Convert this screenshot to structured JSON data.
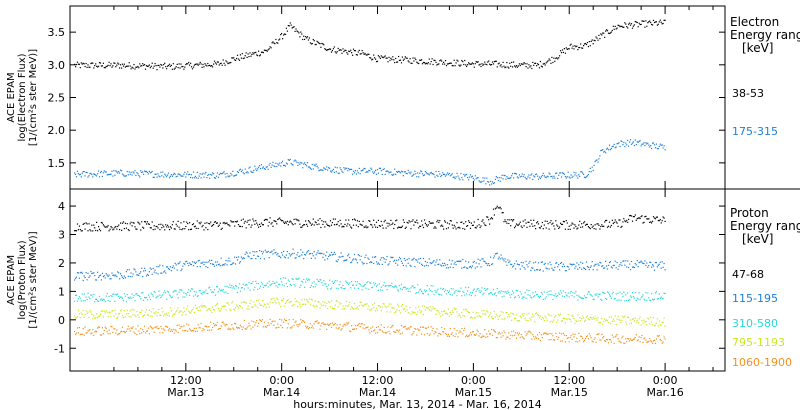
{
  "chart_data": {
    "type": "scatter",
    "xlabel": "hours:minutes, Mar. 13, 2014 - Mar. 16, 2014",
    "x_ticks": [
      {
        "line1": "12:00",
        "line2": "Mar.13",
        "hours": 12
      },
      {
        "line1": "0:00",
        "line2": "Mar.14",
        "hours": 24
      },
      {
        "line1": "12:00",
        "line2": "Mar.14",
        "hours": 36
      },
      {
        "line1": "0:00",
        "line2": "Mar.15",
        "hours": 48
      },
      {
        "line1": "12:00",
        "line2": "Mar.15",
        "hours": 60
      },
      {
        "line1": "0:00",
        "line2": "Mar.16",
        "hours": 72
      }
    ],
    "xlim_hours": [
      -2.5,
      79.5
    ],
    "panels": [
      {
        "ylabel_lines": [
          "ACE EPAM",
          "log(Electron Flux)",
          "[1/(cm²s ster MeV)]"
        ],
        "ylim": [
          1.1,
          3.9
        ],
        "y_ticks": [
          "1.5",
          "2.0",
          "2.5",
          "3.0",
          "3.5"
        ],
        "side_title": [
          "Electron",
          "Energy ranges",
          "[keV]"
        ],
        "series": [
          {
            "name": "38-53",
            "color": "#000000",
            "points": [
              [
                -2,
                3.0
              ],
              [
                4,
                3.0
              ],
              [
                10,
                2.98
              ],
              [
                16,
                3.02
              ],
              [
                18,
                3.1
              ],
              [
                22,
                3.22
              ],
              [
                24,
                3.45
              ],
              [
                25,
                3.6
              ],
              [
                27,
                3.4
              ],
              [
                30,
                3.25
              ],
              [
                34,
                3.18
              ],
              [
                36,
                3.1
              ],
              [
                40,
                3.08
              ],
              [
                44,
                3.05
              ],
              [
                48,
                3.02
              ],
              [
                50,
                3.02
              ],
              [
                54,
                3.0
              ],
              [
                56,
                3.0
              ],
              [
                58,
                3.1
              ],
              [
                60,
                3.28
              ],
              [
                62,
                3.3
              ],
              [
                64,
                3.45
              ],
              [
                66,
                3.6
              ],
              [
                68,
                3.62
              ],
              [
                70,
                3.64
              ],
              [
                72,
                3.65
              ]
            ]
          },
          {
            "name": "175-315",
            "color": "#1e7fd8",
            "points": [
              [
                -2,
                1.33
              ],
              [
                4,
                1.35
              ],
              [
                10,
                1.33
              ],
              [
                16,
                1.32
              ],
              [
                19,
                1.38
              ],
              [
                22,
                1.45
              ],
              [
                25,
                1.52
              ],
              [
                28,
                1.45
              ],
              [
                32,
                1.38
              ],
              [
                36,
                1.38
              ],
              [
                40,
                1.35
              ],
              [
                44,
                1.33
              ],
              [
                48,
                1.28
              ],
              [
                50,
                1.22
              ],
              [
                52,
                1.3
              ],
              [
                56,
                1.3
              ],
              [
                60,
                1.32
              ],
              [
                62,
                1.33
              ],
              [
                63,
                1.45
              ],
              [
                64,
                1.68
              ],
              [
                66,
                1.8
              ],
              [
                68,
                1.82
              ],
              [
                70,
                1.78
              ],
              [
                72,
                1.74
              ]
            ]
          }
        ]
      },
      {
        "ylabel_lines": [
          "ACE EPAM",
          "log(Proton Flux)",
          "[1/(cm²s ster MeV)]"
        ],
        "ylim": [
          -1.8,
          4.6
        ],
        "y_ticks": [
          "-1",
          "0",
          "1",
          "2",
          "3",
          "4"
        ],
        "side_title": [
          "Proton",
          "Energy ranges",
          "[keV]"
        ],
        "series": [
          {
            "name": "47-68",
            "color": "#000000",
            "points": [
              [
                -2,
                3.3
              ],
              [
                10,
                3.32
              ],
              [
                16,
                3.35
              ],
              [
                18,
                3.38
              ],
              [
                22,
                3.45
              ],
              [
                30,
                3.42
              ],
              [
                40,
                3.38
              ],
              [
                48,
                3.35
              ],
              [
                50,
                3.55
              ],
              [
                51,
                4.1
              ],
              [
                52,
                3.4
              ],
              [
                60,
                3.35
              ],
              [
                66,
                3.38
              ],
              [
                68,
                3.6
              ],
              [
                70,
                3.55
              ],
              [
                72,
                3.5
              ]
            ]
          },
          {
            "name": "115-195",
            "color": "#1e7fd8",
            "points": [
              [
                -2,
                1.55
              ],
              [
                4,
                1.6
              ],
              [
                8,
                1.75
              ],
              [
                12,
                1.95
              ],
              [
                16,
                2.05
              ],
              [
                18,
                2.1
              ],
              [
                20,
                2.3
              ],
              [
                26,
                2.35
              ],
              [
                30,
                2.25
              ],
              [
                34,
                2.15
              ],
              [
                36,
                2.1
              ],
              [
                40,
                2.05
              ],
              [
                44,
                2.0
              ],
              [
                48,
                1.98
              ],
              [
                50,
                2.05
              ],
              [
                51,
                2.3
              ],
              [
                52,
                1.98
              ],
              [
                56,
                1.9
              ],
              [
                60,
                1.88
              ],
              [
                64,
                1.92
              ],
              [
                68,
                1.95
              ],
              [
                72,
                1.9
              ]
            ]
          },
          {
            "name": "310-580",
            "color": "#29d8d8",
            "points": [
              [
                -2,
                0.8
              ],
              [
                4,
                0.8
              ],
              [
                10,
                0.9
              ],
              [
                16,
                1.05
              ],
              [
                20,
                1.2
              ],
              [
                24,
                1.35
              ],
              [
                28,
                1.3
              ],
              [
                32,
                1.22
              ],
              [
                36,
                1.2
              ],
              [
                40,
                1.12
              ],
              [
                44,
                1.05
              ],
              [
                48,
                1.0
              ],
              [
                52,
                0.95
              ],
              [
                56,
                0.9
              ],
              [
                60,
                0.88
              ],
              [
                66,
                0.85
              ],
              [
                72,
                0.85
              ]
            ]
          },
          {
            "name": "795-1193",
            "color": "#c8e81e",
            "points": [
              [
                -2,
                0.2
              ],
              [
                4,
                0.22
              ],
              [
                10,
                0.3
              ],
              [
                16,
                0.45
              ],
              [
                20,
                0.55
              ],
              [
                24,
                0.65
              ],
              [
                28,
                0.6
              ],
              [
                32,
                0.52
              ],
              [
                36,
                0.45
              ],
              [
                40,
                0.38
              ],
              [
                44,
                0.3
              ],
              [
                48,
                0.22
              ],
              [
                52,
                0.15
              ],
              [
                56,
                0.1
              ],
              [
                60,
                0.05
              ],
              [
                66,
                0.0
              ],
              [
                72,
                -0.05
              ]
            ]
          },
          {
            "name": "1060-1900",
            "color": "#f0911e",
            "points": [
              [
                -2,
                -0.4
              ],
              [
                4,
                -0.35
              ],
              [
                10,
                -0.3
              ],
              [
                16,
                -0.2
              ],
              [
                20,
                -0.15
              ],
              [
                24,
                -0.1
              ],
              [
                28,
                -0.15
              ],
              [
                32,
                -0.22
              ],
              [
                36,
                -0.3
              ],
              [
                40,
                -0.35
              ],
              [
                44,
                -0.4
              ],
              [
                48,
                -0.45
              ],
              [
                52,
                -0.5
              ],
              [
                56,
                -0.55
              ],
              [
                60,
                -0.6
              ],
              [
                66,
                -0.65
              ],
              [
                72,
                -0.65
              ]
            ]
          }
        ]
      }
    ]
  }
}
